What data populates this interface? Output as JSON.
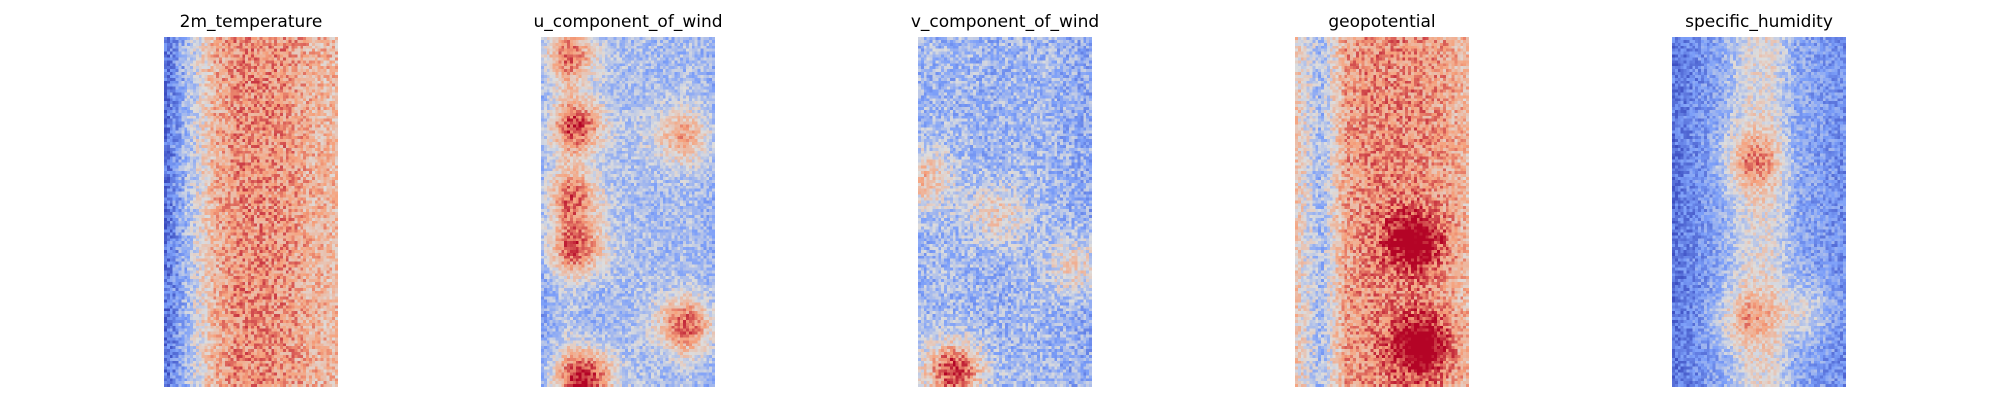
{
  "chart_data": [
    {
      "type": "heatmap",
      "title": "2m_temperature",
      "colormap": "coolwarm",
      "axes_visible": false,
      "grid": false,
      "profile": [
        -0.8,
        -0.2,
        0.35,
        0.55,
        0.55,
        0.5,
        0.35,
        0.3
      ],
      "noise": 0.3,
      "hotspots": []
    },
    {
      "type": "heatmap",
      "title": "u_component_of_wind",
      "colormap": "coolwarm",
      "axes_visible": false,
      "grid": false,
      "profile": [
        -0.45,
        -0.2,
        -0.35,
        -0.3,
        -0.25,
        -0.3,
        -0.25,
        -0.35
      ],
      "noise": 0.25,
      "hotspots": [
        {
          "col": 0.16,
          "row": 0.05,
          "strength": 0.9
        },
        {
          "col": 0.2,
          "row": 0.25,
          "strength": 1.1
        },
        {
          "col": 0.18,
          "row": 0.45,
          "strength": 0.9
        },
        {
          "col": 0.2,
          "row": 0.6,
          "strength": 1.0
        },
        {
          "col": 0.8,
          "row": 0.28,
          "strength": 0.7
        },
        {
          "col": 0.82,
          "row": 0.82,
          "strength": 1.0
        },
        {
          "col": 0.24,
          "row": 0.97,
          "strength": 1.3
        }
      ]
    },
    {
      "type": "heatmap",
      "title": "v_component_of_wind",
      "colormap": "coolwarm",
      "axes_visible": false,
      "grid": false,
      "profile": [
        -0.3,
        -0.3,
        -0.3,
        -0.35,
        -0.3,
        -0.3,
        -0.35,
        -0.4
      ],
      "noise": 0.3,
      "hotspots": [
        {
          "col": 0.02,
          "row": 0.4,
          "strength": 0.6
        },
        {
          "col": 0.45,
          "row": 0.5,
          "strength": 0.5
        },
        {
          "col": 0.2,
          "row": 0.95,
          "strength": 1.2
        },
        {
          "col": 0.9,
          "row": 0.65,
          "strength": 0.5
        }
      ]
    },
    {
      "type": "heatmap",
      "title": "geopotential",
      "colormap": "coolwarm",
      "axes_visible": false,
      "grid": false,
      "profile": [
        0.2,
        -0.3,
        0.45,
        0.55,
        0.55,
        0.55,
        0.45,
        0.3
      ],
      "noise": 0.3,
      "hotspots": [
        {
          "col": 0.68,
          "row": 0.58,
          "strength": 0.7
        },
        {
          "col": 0.72,
          "row": 0.88,
          "strength": 0.8
        }
      ]
    },
    {
      "type": "heatmap",
      "title": "specific_humidity",
      "colormap": "coolwarm",
      "axes_visible": false,
      "grid": false,
      "profile": [
        -0.75,
        -0.6,
        -0.4,
        0.0,
        0.05,
        -0.4,
        -0.5,
        -0.6
      ],
      "noise": 0.25,
      "hotspots": [
        {
          "col": 0.45,
          "row": 0.35,
          "strength": 0.6
        },
        {
          "col": 0.4,
          "row": 0.8,
          "strength": 0.5
        },
        {
          "col": 0.75,
          "row": 0.78,
          "strength": 0.4
        }
      ]
    }
  ]
}
